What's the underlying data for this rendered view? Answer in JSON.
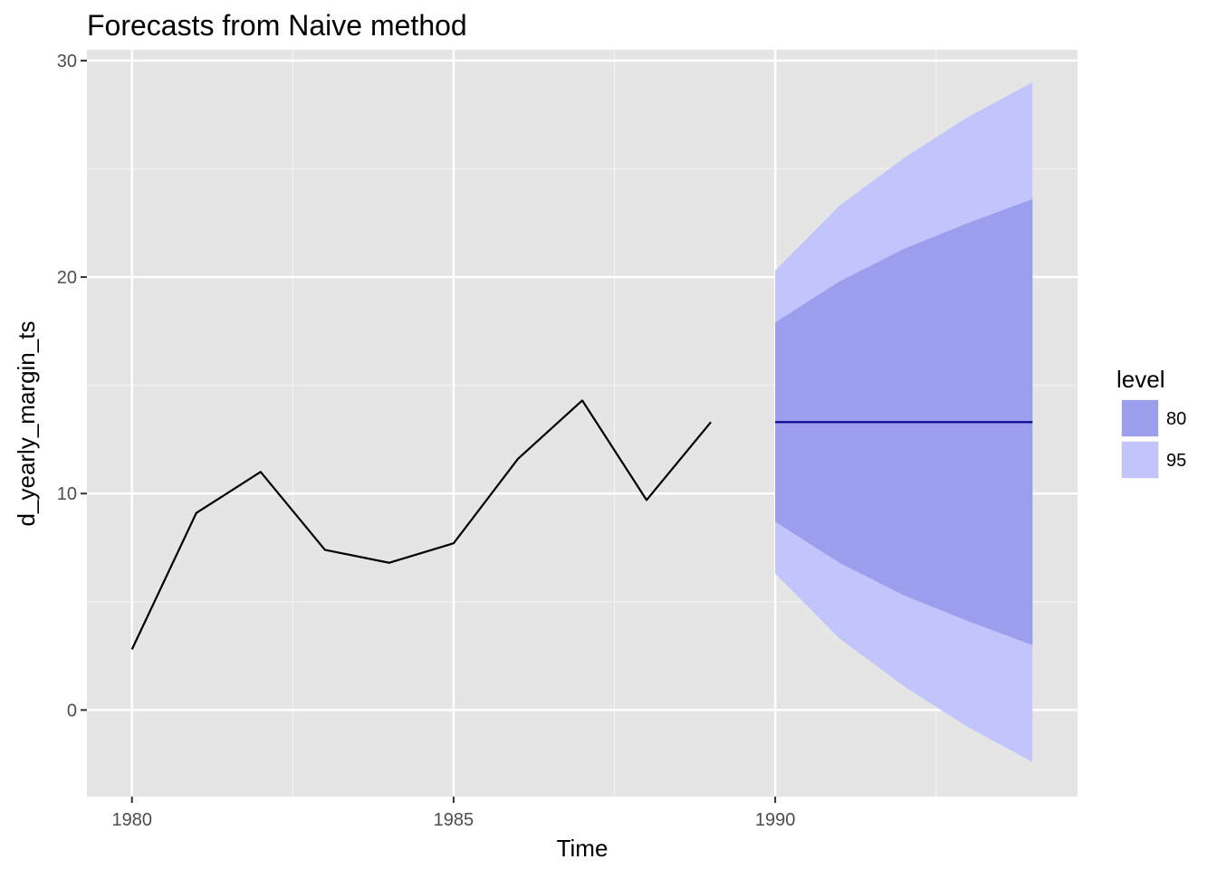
{
  "chart_data": {
    "type": "line",
    "title": "Forecasts from Naive method",
    "xlabel": "Time",
    "ylabel": "d_yearly_margin_ts",
    "xlim": [
      1979.3,
      1994.7
    ],
    "ylim": [
      -4,
      30.5
    ],
    "x_ticks": [
      1980,
      1985,
      1990
    ],
    "x_tick_labels": [
      "1980",
      "1985",
      "1990"
    ],
    "y_ticks": [
      0,
      10,
      20,
      30
    ],
    "y_tick_labels": [
      "0",
      "10",
      "20",
      "30"
    ],
    "grid": true,
    "legend_position": "right",
    "legend_title": "level",
    "series": [
      {
        "x": [
          1980,
          1981,
          1982,
          1983,
          1984,
          1985,
          1986,
          1987,
          1988,
          1989
        ],
        "values": [
          2.8,
          9.1,
          11.0,
          7.4,
          6.8,
          7.7,
          11.6,
          14.3,
          9.7,
          13.3
        ],
        "color": "#000000"
      }
    ],
    "forecast": {
      "x": [
        1990,
        1991,
        1992,
        1993,
        1994
      ],
      "mean": [
        13.3,
        13.3,
        13.3,
        13.3,
        13.3
      ],
      "lower80": [
        8.7,
        6.8,
        5.3,
        4.1,
        3.0
      ],
      "upper80": [
        17.9,
        19.8,
        21.3,
        22.5,
        23.6
      ],
      "lower95": [
        6.3,
        3.3,
        1.1,
        -0.8,
        -2.4
      ],
      "upper95": [
        20.3,
        23.3,
        25.5,
        27.4,
        29.0
      ],
      "mean_color": "#00008b"
    },
    "legend": [
      {
        "label": "80",
        "color": "#9b9eec"
      },
      {
        "label": "95",
        "color": "#c2c4fc"
      }
    ]
  }
}
